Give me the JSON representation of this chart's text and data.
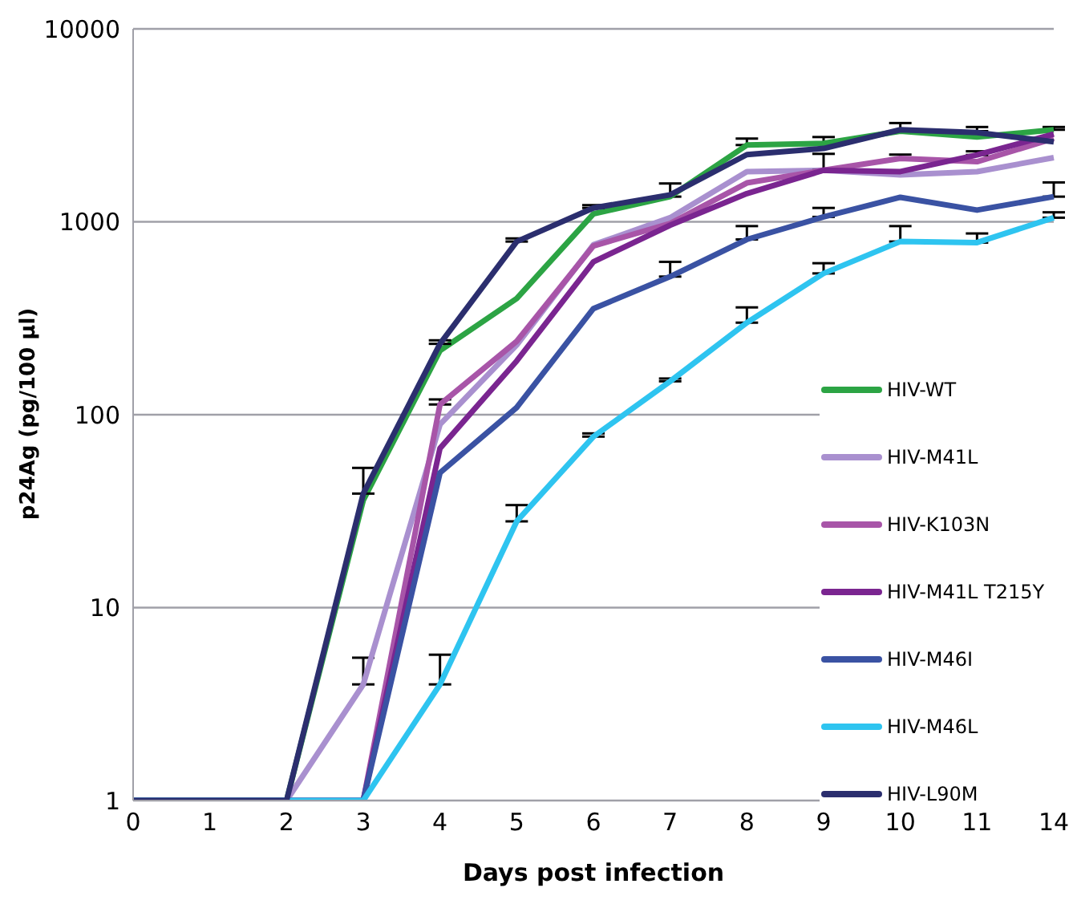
{
  "chart_data": {
    "type": "line",
    "xlabel": "Days post infection",
    "ylabel": "p24Ag (pg/100 µl)",
    "categories": [
      "0",
      "1",
      "2",
      "3",
      "4",
      "5",
      "6",
      "7",
      "8",
      "9",
      "10",
      "11",
      "14"
    ],
    "log": "y",
    "ylim": [
      1,
      10000
    ],
    "yticks": [
      1,
      10,
      100,
      1000,
      10000
    ],
    "grid": "y",
    "legend": "right",
    "marker": "none",
    "line_style": "solid",
    "series": [
      {
        "name": "HIV-WT",
        "color": "#2ca444",
        "values": [
          1,
          1,
          1,
          36,
          215,
          400,
          1100,
          1350,
          2500,
          2550,
          2950,
          2750,
          3000
        ],
        "errors": [
          null,
          null,
          null,
          null,
          null,
          null,
          null,
          [
            1350,
            1580
          ],
          [
            2500,
            2700
          ],
          [
            2550,
            2750
          ],
          [
            2950,
            3250
          ],
          [
            2750,
            2950
          ],
          [
            3000,
            3100
          ]
        ]
      },
      {
        "name": "HIV-M41L",
        "color": "#a990cf",
        "values": [
          1,
          1,
          1,
          4,
          89,
          230,
          760,
          1050,
          1820,
          1850,
          1750,
          1820,
          2150
        ],
        "errors": [
          null,
          null,
          null,
          [
            4,
            5.5
          ],
          null,
          null,
          null,
          null,
          null,
          null,
          null,
          null,
          null
        ]
      },
      {
        "name": "HIV-K103N",
        "color": "#a855a8",
        "values": [
          1,
          1,
          1,
          1,
          113,
          240,
          750,
          980,
          1590,
          1850,
          2130,
          2050,
          2700
        ],
        "errors": [
          null,
          null,
          null,
          null,
          [
            113,
            120
          ],
          null,
          null,
          null,
          null,
          [
            1850,
            2250
          ],
          [
            2130,
            2230
          ],
          null,
          null
        ]
      },
      {
        "name": "HIV-M41L T215Y",
        "color": "#7a2590",
        "values": [
          1,
          1,
          1,
          1,
          67,
          190,
          620,
          960,
          1400,
          1850,
          1820,
          2220,
          2850
        ],
        "errors": [
          null,
          null,
          null,
          null,
          null,
          null,
          null,
          null,
          null,
          null,
          null,
          [
            2220,
            2320
          ],
          null
        ]
      },
      {
        "name": "HIV-M46I",
        "color": "#3a52a3",
        "values": [
          1,
          1,
          1,
          1,
          50,
          109,
          355,
          520,
          810,
          1060,
          1340,
          1150,
          1350
        ],
        "errors": [
          null,
          null,
          null,
          null,
          null,
          null,
          null,
          [
            520,
            620
          ],
          [
            810,
            950
          ],
          [
            1060,
            1180
          ],
          null,
          null,
          [
            1350,
            1600
          ]
        ]
      },
      {
        "name": "HIV-M46L",
        "color": "#2ec4f0",
        "values": [
          1,
          1,
          1,
          1,
          4,
          28,
          77,
          149,
          300,
          540,
          790,
          780,
          1050
        ],
        "errors": [
          null,
          null,
          null,
          null,
          [
            4,
            5.7
          ],
          [
            28,
            34
          ],
          [
            77,
            80
          ],
          [
            149,
            154
          ],
          [
            300,
            360
          ],
          [
            540,
            610
          ],
          [
            790,
            950
          ],
          [
            780,
            870
          ],
          [
            1050,
            1120
          ]
        ]
      },
      {
        "name": "HIV-L90M",
        "color": "#2b2e6e",
        "values": [
          1,
          1,
          1,
          39,
          233,
          790,
          1180,
          1380,
          2230,
          2400,
          3000,
          2900,
          2600
        ],
        "errors": [
          null,
          null,
          null,
          [
            39,
            53
          ],
          [
            233,
            243
          ],
          [
            790,
            820
          ],
          [
            1180,
            1220
          ],
          null,
          null,
          null,
          null,
          [
            2900,
            3100
          ],
          null
        ]
      }
    ]
  }
}
